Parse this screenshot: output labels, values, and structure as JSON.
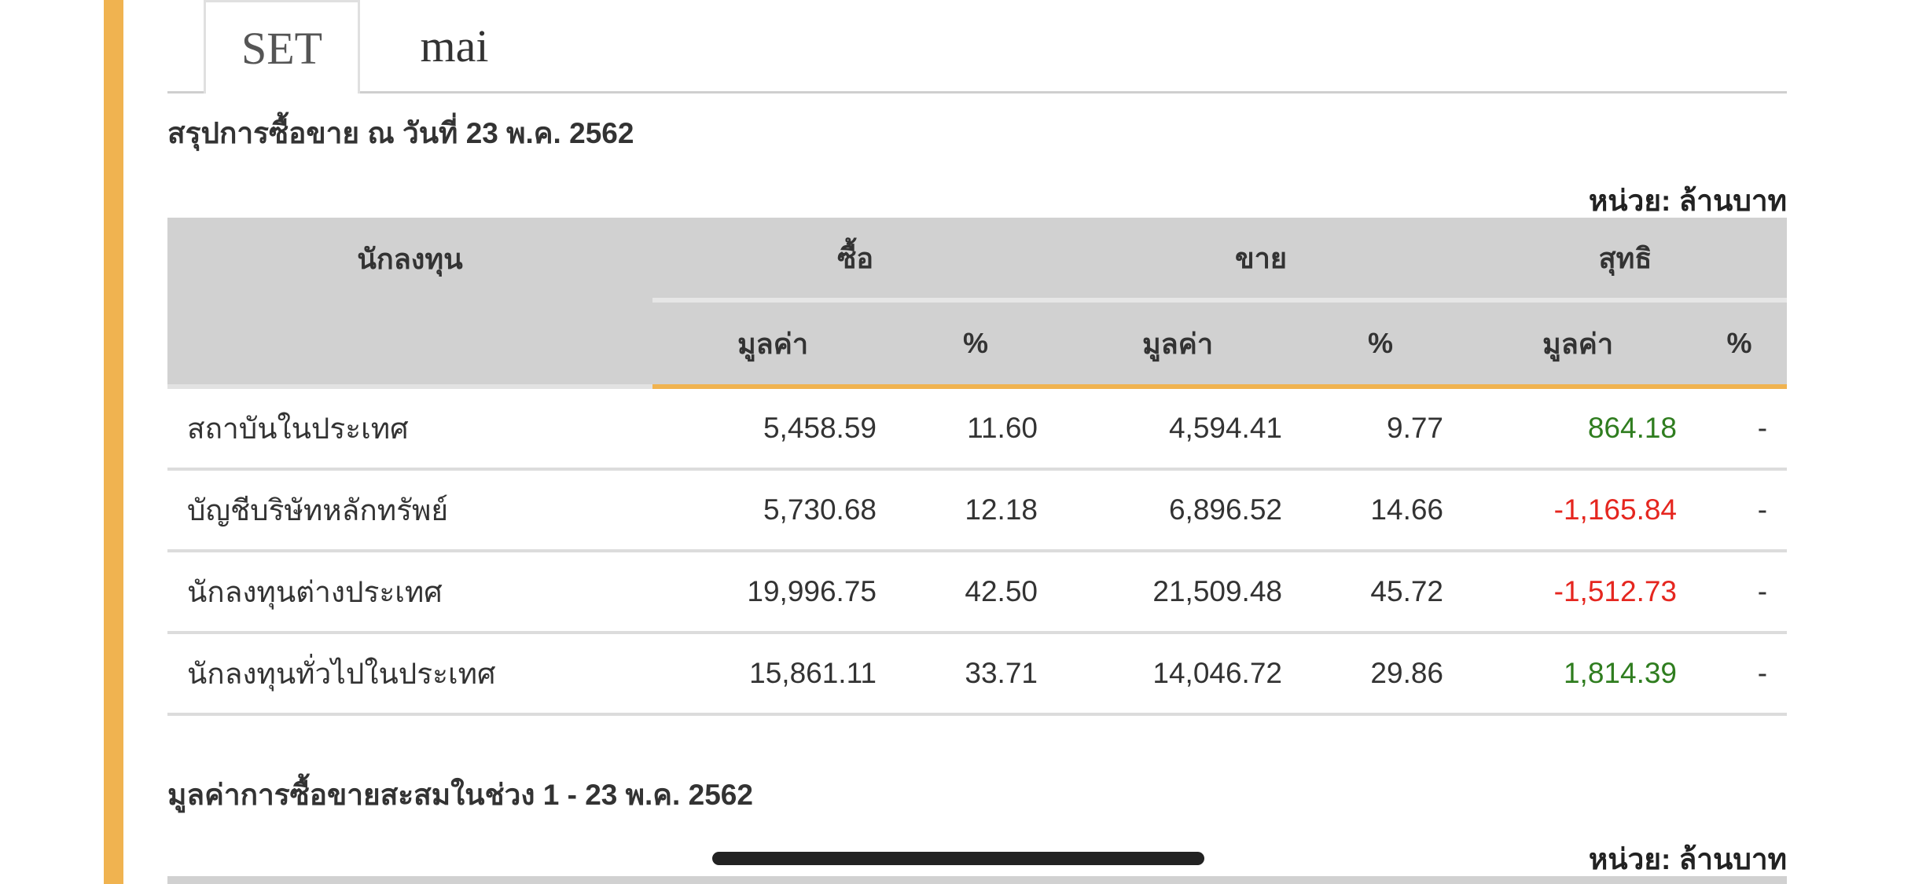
{
  "tabs": [
    {
      "label": "SET",
      "active": true
    },
    {
      "label": "mai",
      "active": false
    }
  ],
  "summary": {
    "title": "สรุปการซื้อขาย ณ วันที่ 23 พ.ค. 2562",
    "unit": "หน่วย: ล้านบาท",
    "headers": {
      "investor": "นักลงทุน",
      "buy": "ซื้อ",
      "sell": "ขาย",
      "net": "สุทธิ",
      "value": "มูลค่า",
      "percent": "%"
    },
    "rows": [
      {
        "investor": "สถาบันในประเทศ",
        "buy_value": "5,458.59",
        "buy_pct": "11.60",
        "sell_value": "4,594.41",
        "sell_pct": "9.77",
        "net_value": "864.18",
        "net_pct": "-",
        "net_sign": "pos"
      },
      {
        "investor": "บัญชีบริษัทหลักทรัพย์",
        "buy_value": "5,730.68",
        "buy_pct": "12.18",
        "sell_value": "6,896.52",
        "sell_pct": "14.66",
        "net_value": "-1,165.84",
        "net_pct": "-",
        "net_sign": "neg"
      },
      {
        "investor": "นักลงทุนต่างประเทศ",
        "buy_value": "19,996.75",
        "buy_pct": "42.50",
        "sell_value": "21,509.48",
        "sell_pct": "45.72",
        "net_value": "-1,512.73",
        "net_pct": "-",
        "net_sign": "neg"
      },
      {
        "investor": "นักลงทุนทั่วไปในประเทศ",
        "buy_value": "15,861.11",
        "buy_pct": "33.71",
        "sell_value": "14,046.72",
        "sell_pct": "29.86",
        "net_value": "1,814.39",
        "net_pct": "-",
        "net_sign": "pos"
      }
    ]
  },
  "cumulative": {
    "title": "มูลค่าการซื้อขายสะสมในช่วง 1 - 23 พ.ค. 2562",
    "unit": "หน่วย: ล้านบาท"
  },
  "colors": {
    "accent": "#f0b350",
    "positive": "#2f7d1f",
    "negative": "#e5261f",
    "header_bg": "#d1d1d1"
  }
}
